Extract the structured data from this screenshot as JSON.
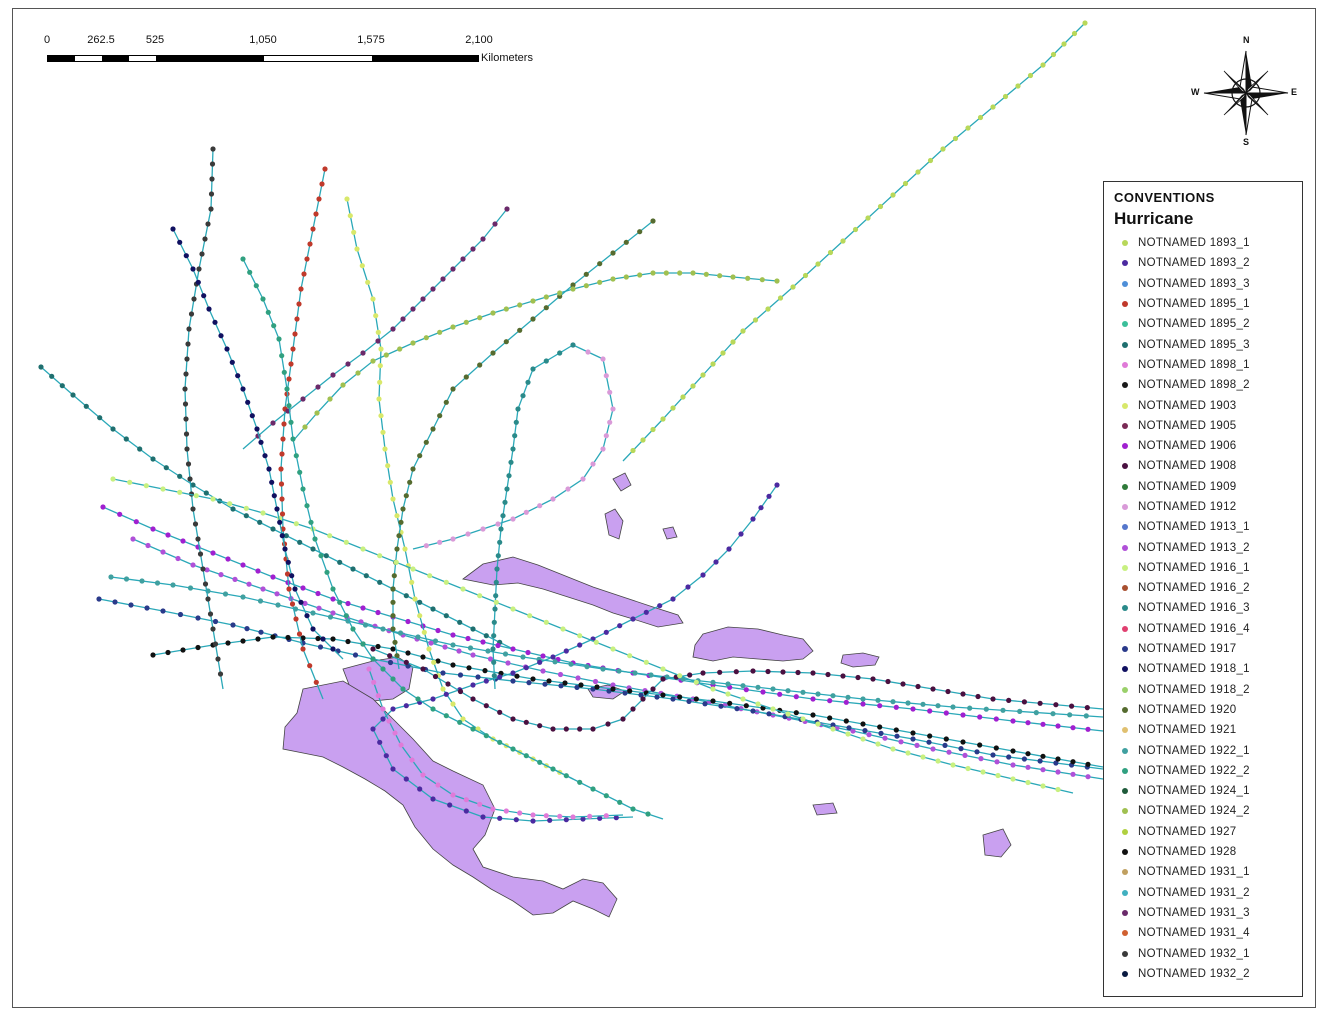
{
  "scale_bar": {
    "ticks": [
      "0",
      "262.5",
      "525",
      "1,050",
      "1,575",
      "2,100"
    ],
    "unit": "Kilometers"
  },
  "compass": {
    "n": "N",
    "s": "S",
    "e": "E",
    "w": "W"
  },
  "legend": {
    "title": "CONVENTIONS",
    "subtitle": "Hurricane",
    "items": [
      {
        "label": "NOTNAMED 1893_1",
        "color": "#b8d85a"
      },
      {
        "label": "NOTNAMED 1893_2",
        "color": "#4b2aa0"
      },
      {
        "label": "NOTNAMED 1893_3",
        "color": "#4e8fd8"
      },
      {
        "label": "NOTNAMED 1895_1",
        "color": "#c0392b"
      },
      {
        "label": "NOTNAMED 1895_2",
        "color": "#3bbf9a"
      },
      {
        "label": "NOTNAMED 1895_3",
        "color": "#1f6f6f"
      },
      {
        "label": "NOTNAMED 1898_1",
        "color": "#e07ad8"
      },
      {
        "label": "NOTNAMED 1898_2",
        "color": "#1a1a1a"
      },
      {
        "label": "NOTNAMED 1903",
        "color": "#d8e86a"
      },
      {
        "label": "NOTNAMED 1905",
        "color": "#7a2a55"
      },
      {
        "label": "NOTNAMED 1906",
        "color": "#a020d0"
      },
      {
        "label": "NOTNAMED 1908",
        "color": "#4a1040"
      },
      {
        "label": "NOTNAMED 1909",
        "color": "#2f7a3a"
      },
      {
        "label": "NOTNAMED 1912",
        "color": "#d99ad8"
      },
      {
        "label": "NOTNAMED 1913_1",
        "color": "#5577cc"
      },
      {
        "label": "NOTNAMED 1913_2",
        "color": "#b050d8"
      },
      {
        "label": "NOTNAMED 1916_1",
        "color": "#c8f080"
      },
      {
        "label": "NOTNAMED 1916_2",
        "color": "#a85030"
      },
      {
        "label": "NOTNAMED 1916_3",
        "color": "#2a8a8a"
      },
      {
        "label": "NOTNAMED 1916_4",
        "color": "#e04070"
      },
      {
        "label": "NOTNAMED 1917",
        "color": "#2a3a8a"
      },
      {
        "label": "NOTNAMED 1918_1",
        "color": "#101060"
      },
      {
        "label": "NOTNAMED 1918_2",
        "color": "#9ad06a"
      },
      {
        "label": "NOTNAMED 1920",
        "color": "#556b2f"
      },
      {
        "label": "NOTNAMED 1921",
        "color": "#e0c070"
      },
      {
        "label": "NOTNAMED 1922_1",
        "color": "#40a0a0"
      },
      {
        "label": "NOTNAMED 1922_2",
        "color": "#30a080"
      },
      {
        "label": "NOTNAMED 1924_1",
        "color": "#1e5a3a"
      },
      {
        "label": "NOTNAMED 1924_2",
        "color": "#a0c050"
      },
      {
        "label": "NOTNAMED 1927",
        "color": "#b0d040"
      },
      {
        "label": "NOTNAMED 1928",
        "color": "#111111"
      },
      {
        "label": "NOTNAMED 1931_1",
        "color": "#c0a060"
      },
      {
        "label": "NOTNAMED 1931_2",
        "color": "#40b0c0"
      },
      {
        "label": "NOTNAMED 1931_3",
        "color": "#6a2a6a"
      },
      {
        "label": "NOTNAMED 1931_4",
        "color": "#d06030"
      },
      {
        "label": "NOTNAMED 1932_1",
        "color": "#3a3a3a"
      },
      {
        "label": "NOTNAMED 1932_2",
        "color": "#0a1a40"
      }
    ]
  },
  "map": {
    "land_color": "#c9a0f0",
    "track_line_color": "#2aa8b8"
  }
}
